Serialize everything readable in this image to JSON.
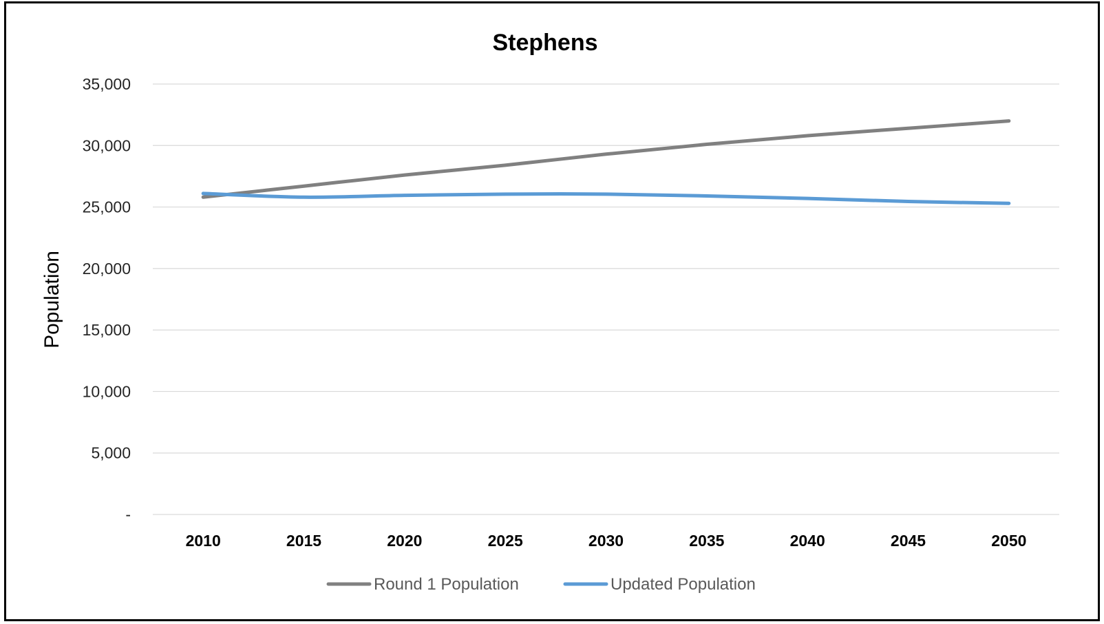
{
  "chart_data": {
    "type": "line",
    "title": "Stephens",
    "xlabel": "",
    "ylabel": "Population",
    "categories": [
      "2010",
      "2015",
      "2020",
      "2025",
      "2030",
      "2035",
      "2040",
      "2045",
      "2050"
    ],
    "ylim": [
      0,
      35000
    ],
    "yticks": [
      0,
      5000,
      10000,
      15000,
      20000,
      25000,
      30000,
      35000
    ],
    "ytick_labels": [
      "-",
      "5,000",
      "10,000",
      "15,000",
      "20,000",
      "25,000",
      "30,000",
      "35,000"
    ],
    "grid": true,
    "legend_position": "bottom",
    "series": [
      {
        "name": "Round 1 Population",
        "color": "#808080",
        "values": [
          25800,
          26700,
          27600,
          28400,
          29300,
          30100,
          30800,
          31400,
          32000
        ]
      },
      {
        "name": "Updated Population",
        "color": "#5b9bd5",
        "values": [
          26100,
          25800,
          25950,
          26050,
          26050,
          25900,
          25700,
          25450,
          25300
        ]
      }
    ]
  }
}
